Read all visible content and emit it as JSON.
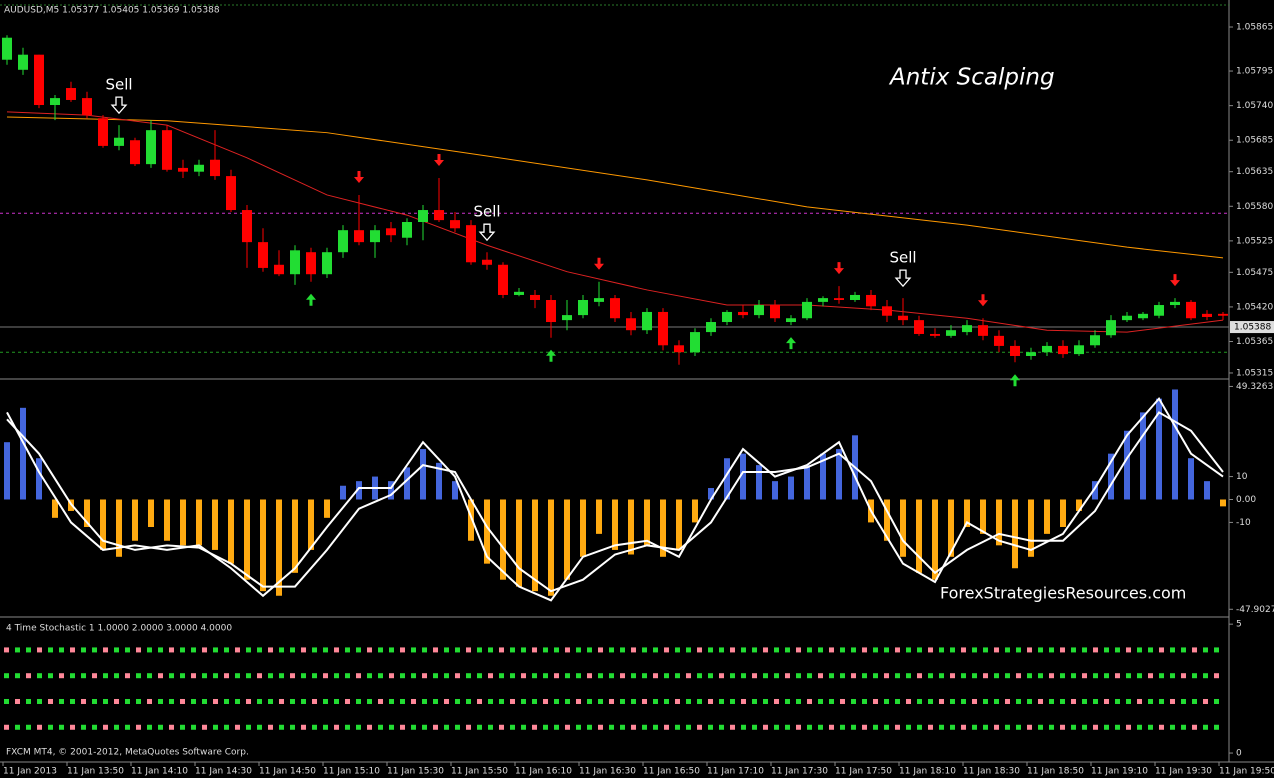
{
  "chart_data": [
    {
      "type": "candlestick",
      "header": "AUDUSD,M5  1.05377 1.05405 1.05369 1.05388",
      "title": "Antix Scalping",
      "categories": [
        "11 Jan 2013",
        null,
        null,
        null,
        "11 Jan 13:50",
        null,
        null,
        null,
        "11 Jan 14:10",
        null,
        null,
        null,
        "11 Jan 14:30",
        null,
        null,
        null,
        "11 Jan 14:50",
        null,
        null,
        null,
        "11 Jan 15:10",
        null,
        null,
        null,
        "11 Jan 15:30",
        null,
        null,
        null,
        "11 Jan 15:50",
        null,
        null,
        null,
        "11 Jan 16:10",
        null,
        null,
        null,
        "11 Jan 16:30",
        null,
        null,
        null,
        "11 Jan 16:50",
        null,
        null,
        null,
        "11 Jan 17:10",
        null,
        null,
        null,
        "11 Jan 17:30",
        null,
        null,
        null,
        "11 Jan 17:50",
        null,
        null,
        null,
        "11 Jan 18:10",
        null,
        null,
        null,
        "11 Jan 18:30",
        null,
        null,
        null,
        "11 Jan 18:50",
        null,
        null,
        null,
        "11 Jan 19:10",
        null,
        null,
        null,
        "11 Jan 19:30",
        null,
        null,
        null,
        "11 Jan 19:50"
      ],
      "open": [
        1.05813,
        1.05797,
        1.05821,
        1.05741,
        1.05768,
        1.05752,
        1.0572,
        1.05676,
        1.05685,
        1.05647,
        1.05701,
        1.05641,
        1.05635,
        1.05654,
        1.05628,
        1.05574,
        1.05523,
        1.05487,
        1.05472,
        1.05507,
        1.05472,
        1.05507,
        1.05542,
        1.05523,
        1.05545,
        1.0553,
        1.05555,
        1.05574,
        1.05558,
        1.0555,
        1.05495,
        1.05487,
        1.05439,
        1.05439,
        1.05431,
        1.05399,
        1.05407,
        1.05428,
        1.05434,
        1.05402,
        1.05383,
        1.05412,
        1.05359,
        1.05348,
        1.0538,
        1.05396,
        1.05412,
        1.05407,
        1.05423,
        1.05396,
        1.05402,
        1.05428,
        1.05434,
        1.05431,
        1.05439,
        1.05421,
        1.05406,
        1.05399,
        1.05377,
        1.05374,
        1.0538,
        1.05391,
        1.05374,
        1.05358,
        1.05342,
        1.05348,
        1.05358,
        1.05345,
        1.05359,
        1.05375,
        1.05399,
        1.05402,
        1.05406,
        1.05423,
        1.05428,
        1.05409,
        1.05409
      ],
      "high": [
        1.05852,
        1.05832,
        1.05821,
        1.05757,
        1.05778,
        1.05762,
        1.05725,
        1.05709,
        1.05689,
        1.05717,
        1.05709,
        1.05654,
        1.05654,
        1.05701,
        1.05638,
        1.05582,
        1.05545,
        1.0551,
        1.05518,
        1.05514,
        1.05514,
        1.0555,
        1.05598,
        1.0555,
        1.05555,
        1.05561,
        1.05582,
        1.05625,
        1.05571,
        1.05558,
        1.05507,
        1.05491,
        1.0545,
        1.05447,
        1.05439,
        1.05431,
        1.05439,
        1.0546,
        1.05439,
        1.05412,
        1.05418,
        1.05418,
        1.05367,
        1.05386,
        1.05402,
        1.05415,
        1.05423,
        1.05431,
        1.05431,
        1.05407,
        1.05434,
        1.05437,
        1.05453,
        1.05444,
        1.05447,
        1.05431,
        1.05434,
        1.05406,
        1.05386,
        1.05391,
        1.05399,
        1.05402,
        1.05383,
        1.05367,
        1.05355,
        1.05364,
        1.05367,
        1.05367,
        1.05383,
        1.05407,
        1.05412,
        1.05412,
        1.05428,
        1.05434,
        1.05431,
        1.05415,
        1.05412
      ],
      "low": [
        1.05805,
        1.05789,
        1.05736,
        1.05717,
        1.05746,
        1.0572,
        1.05673,
        1.05669,
        1.05644,
        1.05641,
        1.05635,
        1.05625,
        1.05628,
        1.05622,
        1.05571,
        1.05482,
        1.05476,
        1.05469,
        1.05455,
        1.0546,
        1.05466,
        1.05498,
        1.05518,
        1.05498,
        1.05523,
        1.05518,
        1.05526,
        1.05555,
        1.05539,
        1.05487,
        1.05479,
        1.05434,
        1.05437,
        1.05418,
        1.05371,
        1.05383,
        1.05402,
        1.05421,
        1.05396,
        1.05375,
        1.05377,
        1.05351,
        1.05328,
        1.05342,
        1.05374,
        1.05391,
        1.05402,
        1.05402,
        1.05396,
        1.05391,
        1.05399,
        1.05421,
        1.05425,
        1.05428,
        1.05415,
        1.05396,
        1.05391,
        1.05374,
        1.05371,
        1.05371,
        1.05375,
        1.05367,
        1.05348,
        1.05332,
        1.05336,
        1.05342,
        1.05339,
        1.05342,
        1.05355,
        1.05371,
        1.05396,
        1.05399,
        1.05402,
        1.05418,
        1.05399,
        1.05399,
        1.05399
      ],
      "close": [
        1.05848,
        1.05821,
        1.05741,
        1.05752,
        1.05749,
        1.05725,
        1.05676,
        1.05689,
        1.05647,
        1.05701,
        1.05638,
        1.05635,
        1.05646,
        1.05628,
        1.05574,
        1.05523,
        1.05482,
        1.05472,
        1.0551,
        1.05472,
        1.05507,
        1.05542,
        1.05523,
        1.05542,
        1.05534,
        1.05555,
        1.05574,
        1.05558,
        1.05545,
        1.05491,
        1.05487,
        1.05439,
        1.05444,
        1.05431,
        1.05396,
        1.05407,
        1.05431,
        1.05434,
        1.05402,
        1.05383,
        1.05412,
        1.05359,
        1.05348,
        1.0538,
        1.05396,
        1.05412,
        1.05407,
        1.05423,
        1.05402,
        1.05402,
        1.05428,
        1.05434,
        1.05431,
        1.05439,
        1.05421,
        1.05406,
        1.05399,
        1.05377,
        1.05374,
        1.05383,
        1.05391,
        1.05374,
        1.05358,
        1.05342,
        1.05348,
        1.05358,
        1.05345,
        1.05359,
        1.05375,
        1.05399,
        1.05406,
        1.05409,
        1.05423,
        1.05428,
        1.05402,
        1.05404,
        1.05406
      ],
      "up_color": "#22dd33",
      "down_color": "#ff0000",
      "ylim": [
        1.05307,
        1.059
      ],
      "yticks": [
        1.05865,
        1.05795,
        {
          "value": 1.0574,
          "label": "1.05740"
        },
        1.05685,
        1.05635,
        {
          "value": 1.0558,
          "label": "1.05580"
        },
        1.05525,
        1.05475,
        {
          "value": 1.0542,
          "label": "1.05420"
        },
        1.05365,
        1.05315
      ],
      "moving_averages": [
        {
          "color": "#ff9900",
          "x": [
            0,
            10,
            20,
            30,
            40,
            50,
            60,
            70,
            76
          ],
          "values": [
            1.05722,
            1.05716,
            1.05697,
            1.0566,
            1.05622,
            1.05579,
            1.0555,
            1.05515,
            1.05498
          ]
        },
        {
          "color": "#dd2222",
          "x": [
            0,
            5,
            10,
            15,
            20,
            25,
            30,
            35,
            40,
            45,
            50,
            55,
            60,
            65,
            70,
            76
          ],
          "values": [
            1.0573,
            1.05725,
            1.05709,
            1.05657,
            1.05598,
            1.05566,
            1.05518,
            1.05476,
            1.05447,
            1.05423,
            1.05423,
            1.05415,
            1.05402,
            1.05383,
            1.0538,
            1.05399
          ]
        }
      ],
      "hlines": [
        {
          "value": 1.05569,
          "color": "#cc33cc"
        },
        {
          "value": 1.05348,
          "color": "#229922"
        }
      ],
      "current_price": 1.05388,
      "sell_signals": [
        {
          "label": "Sell",
          "x": 7
        },
        {
          "label": "Sell",
          "x": 30
        },
        {
          "label": "Sell",
          "x": 56
        }
      ],
      "down_arrows": [
        22,
        27,
        37,
        52,
        61,
        73
      ],
      "up_arrows": [
        19,
        34,
        49,
        63
      ],
      "arrow_colors": {
        "down": "#ff1a1a",
        "up": "#22dd33"
      }
    },
    {
      "type": "oscillator",
      "watermark": "ForexStrategiesResources.com",
      "values": [
        25,
        40,
        18,
        -8,
        -5,
        -12,
        -22,
        -25,
        -18,
        -12,
        -18,
        -20,
        -20,
        -22,
        -28,
        -35,
        -40,
        -42,
        -32,
        -22,
        -8,
        6,
        8,
        10,
        8,
        14,
        22,
        16,
        8,
        -18,
        -28,
        -35,
        -38,
        -40,
        -42,
        -35,
        -25,
        -15,
        -22,
        -24,
        -20,
        -25,
        -22,
        -10,
        5,
        18,
        20,
        15,
        8,
        10,
        15,
        20,
        22,
        28,
        -10,
        -18,
        -25,
        -32,
        -35,
        -25,
        -12,
        -15,
        -20,
        -30,
        -25,
        -15,
        -12,
        -5,
        8,
        20,
        30,
        38,
        44,
        48,
        18,
        8,
        -3
      ],
      "positive_color": "#4466dd",
      "negative_color": "#ffaa11",
      "lines": [
        {
          "color": "#ffffff",
          "x": [
            0,
            2,
            4,
            6,
            8,
            10,
            12,
            14,
            16,
            18,
            20,
            22,
            24,
            26,
            28,
            30,
            32,
            34,
            36,
            38,
            40,
            42,
            44,
            46,
            48,
            50,
            52,
            54,
            56,
            58,
            60,
            62,
            64,
            66,
            68,
            70,
            72,
            74,
            76
          ],
          "values": [
            38,
            12,
            -10,
            -22,
            -20,
            -22,
            -20,
            -30,
            -42,
            -30,
            -12,
            5,
            5,
            25,
            10,
            -25,
            -38,
            -44,
            -25,
            -20,
            -18,
            -25,
            0,
            22,
            10,
            15,
            25,
            -5,
            -28,
            -36,
            -10,
            -18,
            -22,
            -15,
            5,
            28,
            44,
            20,
            10
          ]
        },
        {
          "color": "#ffffff",
          "x": [
            0,
            2,
            4,
            6,
            8,
            10,
            12,
            14,
            16,
            18,
            20,
            22,
            24,
            26,
            28,
            30,
            32,
            34,
            36,
            38,
            40,
            42,
            44,
            46,
            48,
            50,
            52,
            54,
            56,
            58,
            60,
            62,
            64,
            66,
            68,
            70,
            72,
            74,
            76
          ],
          "values": [
            35,
            20,
            -2,
            -18,
            -22,
            -20,
            -21,
            -28,
            -38,
            -38,
            -22,
            -4,
            2,
            15,
            12,
            -12,
            -30,
            -40,
            -35,
            -24,
            -20,
            -22,
            -10,
            12,
            12,
            14,
            20,
            8,
            -18,
            -32,
            -22,
            -15,
            -18,
            -18,
            -5,
            18,
            38,
            30,
            12
          ]
        }
      ],
      "ylim": [
        -50.4,
        51.7
      ],
      "yticks": [
        49.3263,
        10,
        {
          "value": 0,
          "label": "0.00"
        },
        -10,
        -47.9027
      ]
    },
    {
      "type": "dot-rows",
      "title": "4 Time Stochastic 1 1.0000 2.0000 3.0000 4.0000",
      "rows": [
        4,
        3,
        2,
        1
      ],
      "colors": [
        "#22dd33",
        "#ff8899"
      ],
      "ylim": [
        -0.27,
        5.2
      ],
      "yticks": [
        5,
        0
      ]
    }
  ],
  "footer": "FXCM MT4, © 2001-2012, MetaQuotes Software Corp."
}
